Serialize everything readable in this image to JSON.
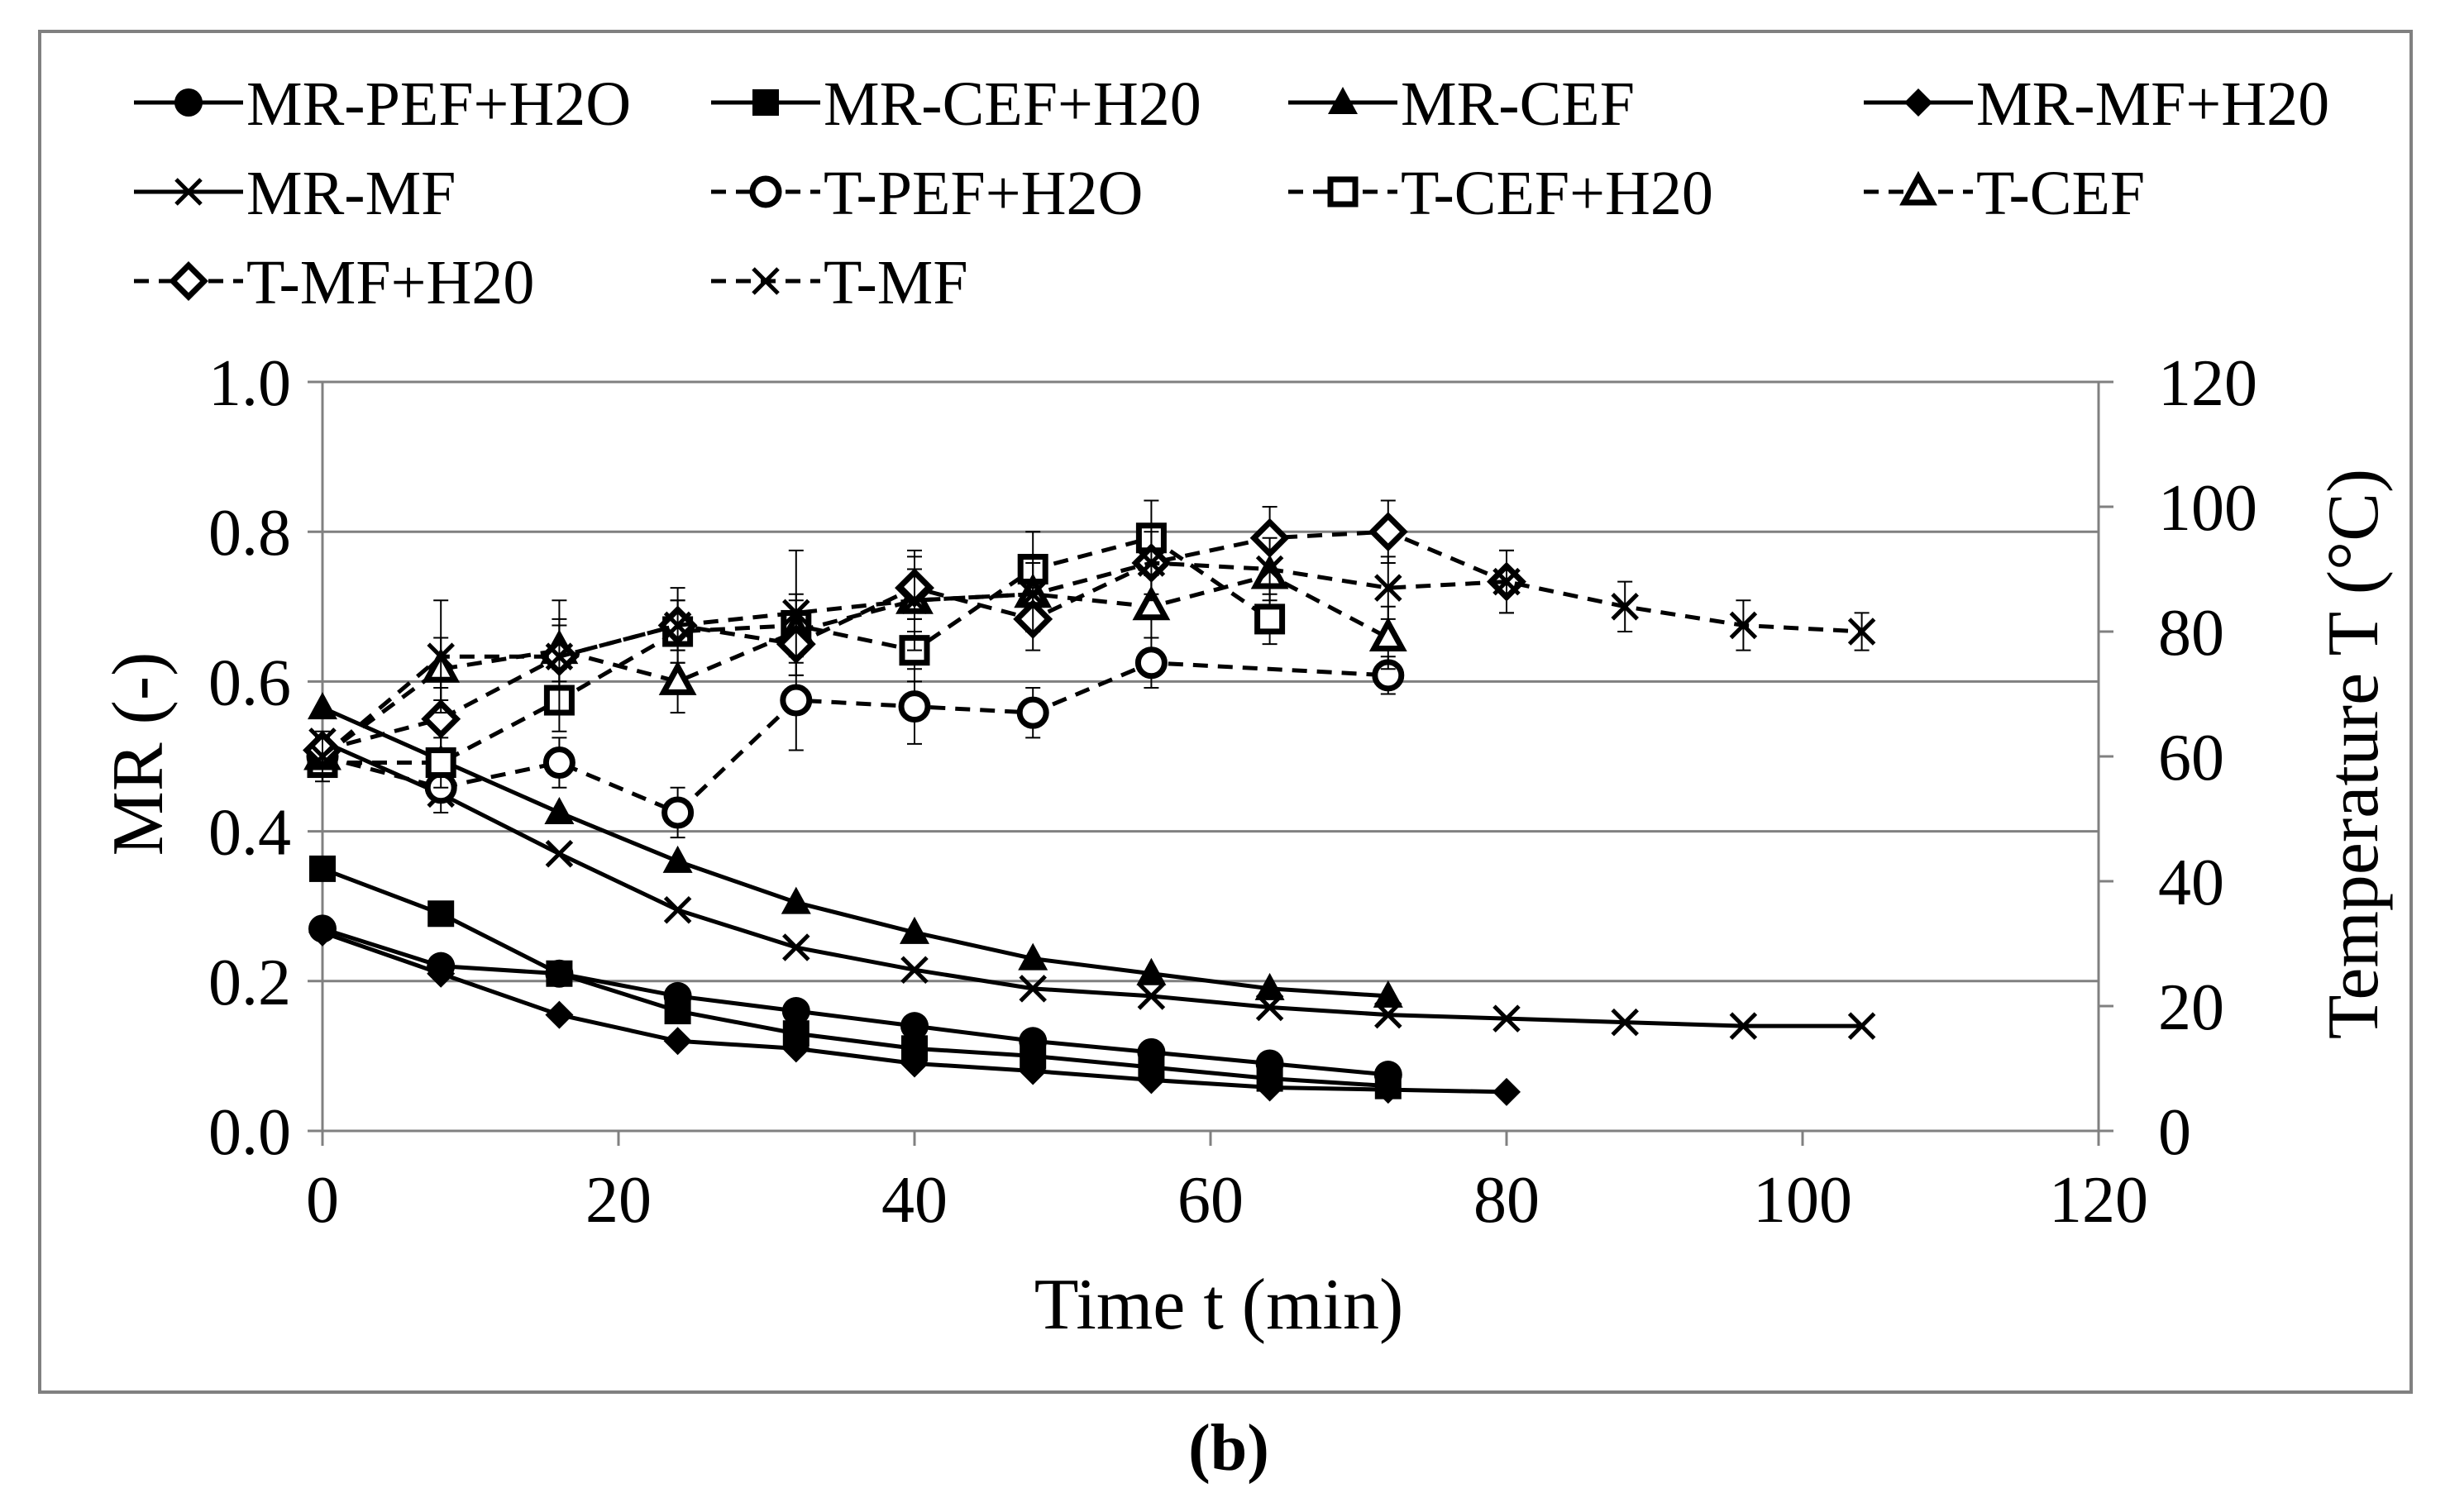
{
  "chart_data": {
    "type": "line",
    "title": "",
    "panel_label": "(b)",
    "xlabel": "Time t (min)",
    "ylabel": "MR (-)",
    "y2label": "Temperature T (°C)",
    "xlim": [
      0,
      120
    ],
    "ylim": [
      0,
      1.0
    ],
    "y2lim": [
      0,
      120
    ],
    "x_ticks": [
      0,
      20,
      40,
      60,
      80,
      100,
      120
    ],
    "y_ticks": [
      0,
      0.2,
      0.4,
      0.6,
      0.8,
      1.0
    ],
    "y_tick_labels": [
      "0.0",
      "0.2",
      "0.4",
      "0.6",
      "0.8",
      "1.0"
    ],
    "y2_ticks": [
      0,
      20,
      40,
      60,
      80,
      100,
      120
    ],
    "grid": "horizontal",
    "legend_position": "top",
    "series": [
      {
        "name": "MR-PEF+H2O",
        "axis": "left",
        "style": "solid",
        "marker": "circle-filled",
        "x": [
          0,
          8,
          16,
          24,
          32,
          40,
          48,
          56,
          64,
          72
        ],
        "y": [
          0.27,
          0.22,
          0.21,
          0.18,
          0.16,
          0.14,
          0.12,
          0.105,
          0.09,
          0.075
        ]
      },
      {
        "name": "MR-CEF+H20",
        "axis": "left",
        "style": "solid",
        "marker": "square-filled",
        "x": [
          0,
          8,
          16,
          24,
          32,
          40,
          48,
          56,
          64,
          72
        ],
        "y": [
          0.35,
          0.29,
          0.21,
          0.16,
          0.13,
          0.11,
          0.1,
          0.085,
          0.07,
          0.06
        ]
      },
      {
        "name": "MR-CEF",
        "axis": "left",
        "style": "solid",
        "marker": "triangle-filled",
        "x": [
          0,
          8,
          16,
          24,
          32,
          40,
          48,
          56,
          64,
          72
        ],
        "y": [
          0.565,
          0.495,
          0.425,
          0.36,
          0.305,
          0.265,
          0.23,
          0.21,
          0.19,
          0.18
        ]
      },
      {
        "name": "MR-MF+H20",
        "axis": "left",
        "style": "solid",
        "marker": "diamond-filled",
        "x": [
          0,
          8,
          16,
          24,
          32,
          40,
          48,
          56,
          64,
          72,
          80
        ],
        "y": [
          0.265,
          0.21,
          0.155,
          0.12,
          0.11,
          0.09,
          0.08,
          0.068,
          0.058,
          0.055,
          0.052
        ]
      },
      {
        "name": "MR-MF",
        "axis": "left",
        "style": "solid",
        "marker": "x",
        "x": [
          0,
          8,
          16,
          24,
          32,
          40,
          48,
          56,
          64,
          72,
          80,
          88,
          96,
          104
        ],
        "y": [
          0.52,
          0.45,
          0.37,
          0.295,
          0.245,
          0.215,
          0.19,
          0.18,
          0.165,
          0.155,
          0.15,
          0.145,
          0.14,
          0.14
        ]
      },
      {
        "name": "T-PEF+H2O",
        "axis": "right",
        "style": "dashed",
        "marker": "circle-open",
        "x": [
          0,
          8,
          16,
          24,
          32,
          40,
          48,
          56,
          72
        ],
        "y": [
          60,
          55,
          59,
          51,
          69,
          68,
          67,
          75,
          73
        ],
        "err": [
          3,
          4,
          4,
          4,
          8,
          6,
          4,
          4,
          3
        ]
      },
      {
        "name": "T-CEF+H20",
        "axis": "right",
        "style": "dashed",
        "marker": "square-open",
        "x": [
          0,
          8,
          16,
          24,
          32,
          40,
          48,
          56,
          64
        ],
        "y": [
          59,
          59,
          69,
          80,
          81,
          77,
          90,
          95,
          82
        ],
        "err": [
          3,
          4,
          5,
          5,
          5,
          5,
          6,
          6,
          4
        ]
      },
      {
        "name": "T-CEF",
        "axis": "right",
        "style": "dashed",
        "marker": "triangle-open",
        "x": [
          0,
          8,
          16,
          24,
          32,
          40,
          48,
          56,
          64,
          72
        ],
        "y": [
          60,
          74,
          77,
          72,
          80,
          85,
          86,
          84,
          89,
          79
        ],
        "err": [
          3,
          5,
          5,
          5,
          5,
          5,
          5,
          5,
          5,
          5
        ]
      },
      {
        "name": "T-MF+H20",
        "axis": "right",
        "style": "dashed",
        "marker": "diamond-open",
        "x": [
          0,
          8,
          16,
          24,
          32,
          40,
          48,
          56,
          64,
          72,
          80
        ],
        "y": [
          61,
          66,
          76,
          81,
          78,
          87,
          82,
          91,
          95,
          96,
          88
        ],
        "err": [
          3,
          5,
          5,
          4,
          5,
          5,
          5,
          5,
          5,
          5,
          5
        ]
      },
      {
        "name": "T-MF",
        "axis": "right",
        "style": "dashed",
        "marker": "x",
        "x": [
          0,
          8,
          16,
          24,
          32,
          40,
          48,
          56,
          64,
          72,
          80,
          88,
          96,
          104
        ],
        "y": [
          60,
          76,
          76,
          81,
          83,
          85,
          86,
          91,
          90,
          87,
          88,
          84,
          81,
          80
        ],
        "err": [
          3,
          9,
          9,
          6,
          10,
          8,
          6,
          6,
          5,
          5,
          5,
          4,
          4,
          3
        ]
      }
    ]
  }
}
